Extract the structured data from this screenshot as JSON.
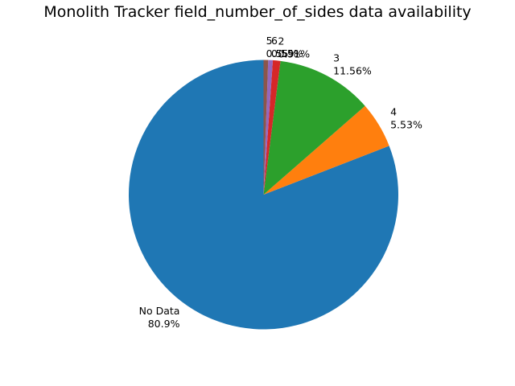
{
  "chart_data": {
    "type": "pie",
    "title": "Monolith Tracker field_number_of_sides data availability",
    "start_angle_deg": 90,
    "direction": "counterclockwise",
    "slices": [
      {
        "label": "No Data",
        "value": 80.9,
        "pct_label": "80.9%",
        "color": "#1f77b4"
      },
      {
        "label": "4",
        "value": 5.53,
        "pct_label": "5.53%",
        "color": "#ff7f0e"
      },
      {
        "label": "3",
        "value": 11.56,
        "pct_label": "11.56%",
        "color": "#2ca02c"
      },
      {
        "label": "2",
        "value": 0.91,
        "pct_label": "0.91%",
        "color": "#d62728"
      },
      {
        "label": "6",
        "value": 0.55,
        "pct_label": "0.55%",
        "color": "#9467bd"
      },
      {
        "label": "5",
        "value": 0.55,
        "pct_label": "0.55%",
        "color": "#8c564b"
      }
    ]
  }
}
